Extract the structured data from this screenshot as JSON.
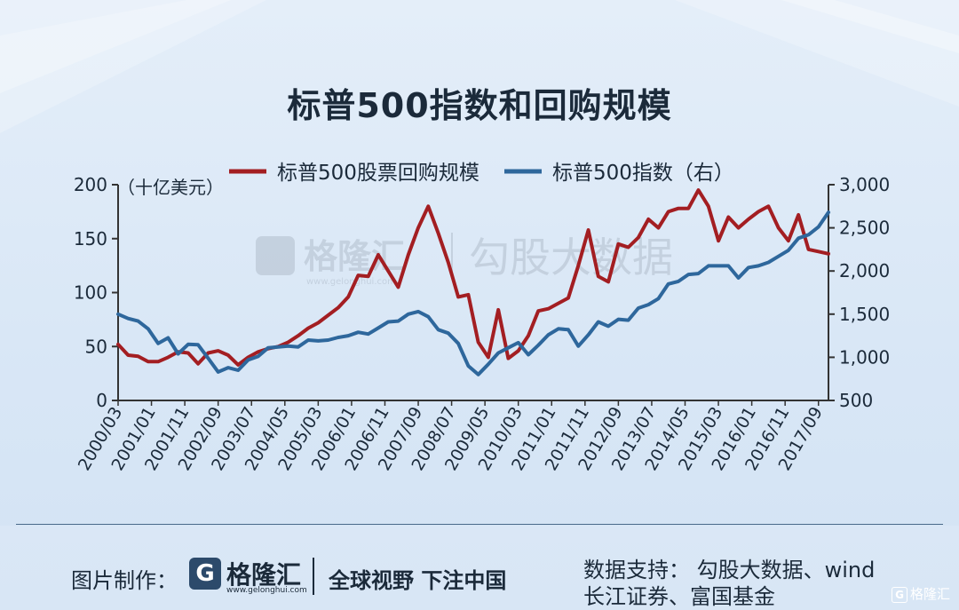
{
  "header": {
    "title": "标普500指数和回购规模"
  },
  "watermark": {
    "brand": "格隆汇",
    "url": "www.gelonghui.com",
    "text": "勾股大数据"
  },
  "chart_data": {
    "type": "line",
    "title": "",
    "legend": {
      "position": "top",
      "entries": [
        "标普500股票回购规模",
        "标普500指数（右）"
      ]
    },
    "left_axis": {
      "label": "（十亿美元）",
      "ylim": [
        0,
        200
      ],
      "ticks": [
        0,
        50,
        100,
        150,
        200
      ],
      "tick_labels": [
        "0",
        "50",
        "100",
        "150",
        "200"
      ]
    },
    "right_axis": {
      "label": "",
      "ylim": [
        500,
        3000
      ],
      "ticks": [
        500,
        1000,
        1500,
        2000,
        2500,
        3000
      ],
      "tick_labels": [
        "500",
        "1,000",
        "1,500",
        "2,000",
        "2,500",
        "3,000"
      ]
    },
    "x_range": [
      "2000/03",
      "2017/12"
    ],
    "x_tick_labels": [
      "2000/03",
      "2001/01",
      "2001/11",
      "2002/09",
      "2003/07",
      "2004/05",
      "2005/03",
      "2006/01",
      "2006/11",
      "2007/09",
      "2008/07",
      "2009/05",
      "2010/03",
      "2011/01",
      "2011/11",
      "2012/09",
      "2013/07",
      "2014/05",
      "2015/03",
      "2016/01",
      "2016/11",
      "2017/09"
    ],
    "x": [
      "2000/03",
      "2000/06",
      "2000/09",
      "2000/12",
      "2001/03",
      "2001/06",
      "2001/09",
      "2001/12",
      "2002/03",
      "2002/06",
      "2002/09",
      "2002/12",
      "2003/03",
      "2003/06",
      "2003/09",
      "2003/12",
      "2004/03",
      "2004/06",
      "2004/09",
      "2004/12",
      "2005/03",
      "2005/06",
      "2005/09",
      "2005/12",
      "2006/03",
      "2006/06",
      "2006/09",
      "2006/12",
      "2007/03",
      "2007/06",
      "2007/09",
      "2007/12",
      "2008/03",
      "2008/06",
      "2008/09",
      "2008/12",
      "2009/03",
      "2009/06",
      "2009/09",
      "2009/12",
      "2010/03",
      "2010/06",
      "2010/09",
      "2010/12",
      "2011/03",
      "2011/06",
      "2011/09",
      "2011/12",
      "2012/03",
      "2012/06",
      "2012/09",
      "2012/12",
      "2013/03",
      "2013/06",
      "2013/09",
      "2013/12",
      "2014/03",
      "2014/06",
      "2014/09",
      "2014/12",
      "2015/03",
      "2015/06",
      "2015/09",
      "2015/12",
      "2016/03",
      "2016/06",
      "2016/09",
      "2016/12",
      "2017/03",
      "2017/06",
      "2017/09",
      "2017/12"
    ],
    "series": [
      {
        "name": "标普500股票回购规模",
        "axis": "left",
        "color": "#a31e22",
        "values": [
          52,
          42,
          41,
          36,
          36,
          40,
          45,
          44,
          34,
          44,
          46,
          42,
          33,
          40,
          45,
          48,
          50,
          54,
          60,
          67,
          72,
          79,
          86,
          96,
          116,
          115,
          135,
          120,
          105,
          135,
          160,
          180,
          155,
          128,
          96,
          98,
          54,
          40,
          84,
          39,
          46,
          60,
          83,
          85,
          90,
          95,
          125,
          158,
          115,
          110,
          145,
          142,
          151,
          168,
          160,
          175,
          178,
          178,
          195,
          180,
          148,
          170,
          160,
          168,
          175,
          180,
          160,
          148,
          172,
          140,
          138,
          136
        ]
      },
      {
        "name": "标普500指数（右）",
        "axis": "right",
        "color": "#2e679c",
        "values": [
          1500,
          1450,
          1420,
          1330,
          1160,
          1225,
          1040,
          1150,
          1145,
          990,
          830,
          880,
          850,
          970,
          1010,
          1110,
          1120,
          1130,
          1120,
          1200,
          1190,
          1200,
          1230,
          1250,
          1290,
          1270,
          1340,
          1410,
          1420,
          1500,
          1530,
          1470,
          1320,
          1280,
          1160,
          900,
          800,
          920,
          1050,
          1110,
          1170,
          1030,
          1140,
          1260,
          1330,
          1320,
          1130,
          1260,
          1410,
          1360,
          1440,
          1430,
          1570,
          1610,
          1680,
          1850,
          1880,
          1960,
          1970,
          2060,
          2060,
          2060,
          1920,
          2040,
          2060,
          2100,
          2170,
          2240,
          2380,
          2420,
          2510,
          2680
        ]
      }
    ]
  },
  "footer": {
    "credit_label": "图片制作：",
    "logo_text": "格隆汇",
    "logo_url": "www.gelonghui.com",
    "slogan": "全球视野 下注中国",
    "source_line1": "数据支持： 勾股大数据、wind",
    "source_line2": "长江证券、富国基金",
    "corner_brand": "格隆汇"
  }
}
